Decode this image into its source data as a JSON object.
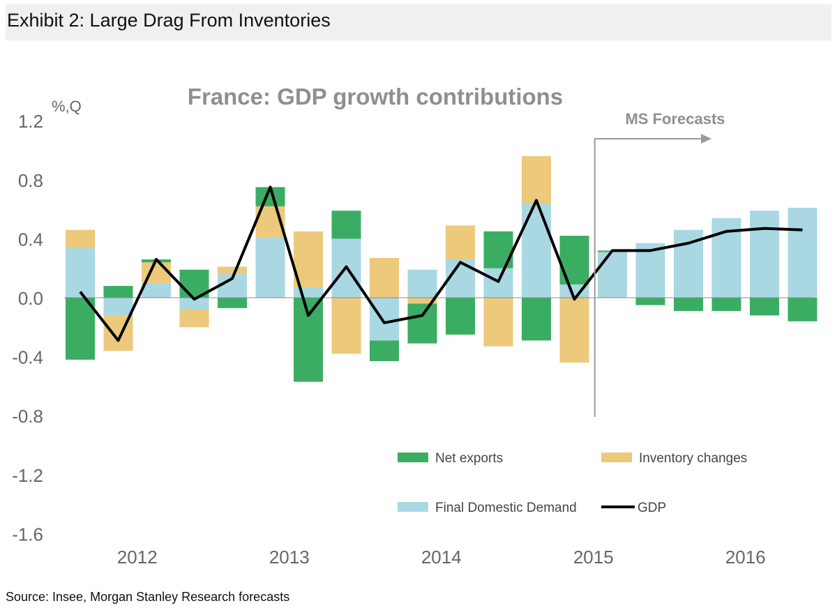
{
  "exhibit": {
    "title": "Exhibit 2:  Large Drag From Inventories",
    "source": "Source: Insee, Morgan Stanley Research forecasts"
  },
  "colors": {
    "net_exports": "#3aad63",
    "inventory": "#ecc97b",
    "domestic": "#a9d8e3",
    "gdp": "#000000",
    "grid_text": "#666666",
    "title_text": "#8f8f8f"
  },
  "chart_data": {
    "type": "bar",
    "title": "France: GDP growth contributions",
    "ylabel": "%,Q",
    "ylim": [
      -1.6,
      1.2
    ],
    "yticks": [
      1.2,
      0.8,
      0.4,
      0.0,
      -0.4,
      -0.8,
      -1.2,
      -1.6
    ],
    "ytick_labels": [
      "1.2",
      "0.8",
      "0.4",
      "0.0",
      "-0.4",
      "-0.8",
      "-1.2",
      "-1.6"
    ],
    "year_labels": [
      "2012",
      "2013",
      "2014",
      "2015",
      "2016"
    ],
    "categories": [
      "2012Q1",
      "2012Q2",
      "2012Q3",
      "2012Q4",
      "2013Q1",
      "2013Q2",
      "2013Q3",
      "2013Q4",
      "2014Q1",
      "2014Q2",
      "2014Q3",
      "2014Q4",
      "2015Q1",
      "2015Q2",
      "2015Q3",
      "2015Q4",
      "2016Q1",
      "2016Q2",
      "2016Q3",
      "2016Q4"
    ],
    "series": [
      {
        "name": "Final Domestic Demand",
        "key": "domestic",
        "values": [
          0.34,
          -0.12,
          0.1,
          -0.08,
          0.16,
          0.41,
          0.07,
          0.4,
          -0.29,
          0.19,
          0.26,
          0.2,
          0.64,
          0.09,
          0.31,
          0.37,
          0.46,
          0.54,
          0.59,
          0.61
        ]
      },
      {
        "name": "Inventory changes",
        "key": "inventory",
        "values": [
          0.12,
          -0.24,
          0.14,
          -0.12,
          0.05,
          0.21,
          0.38,
          -0.38,
          0.27,
          -0.04,
          0.23,
          -0.33,
          0.32,
          -0.44,
          0.0,
          0.0,
          0.0,
          0.0,
          0.0,
          0.0
        ]
      },
      {
        "name": "Net exports",
        "key": "net_exports",
        "values": [
          -0.42,
          0.08,
          0.02,
          0.19,
          -0.07,
          0.13,
          -0.57,
          0.19,
          -0.14,
          -0.27,
          -0.25,
          0.25,
          -0.29,
          0.33,
          0.01,
          -0.05,
          -0.09,
          -0.09,
          -0.12,
          -0.16
        ]
      },
      {
        "name": "GDP",
        "key": "gdp",
        "type": "line",
        "values": [
          0.04,
          -0.29,
          0.26,
          -0.01,
          0.13,
          0.75,
          -0.12,
          0.21,
          -0.17,
          -0.12,
          0.24,
          0.11,
          0.66,
          -0.01,
          0.32,
          0.32,
          0.37,
          0.45,
          0.47,
          0.46
        ]
      }
    ],
    "legend": [
      {
        "label": "Net exports",
        "key": "net_exports",
        "kind": "bar"
      },
      {
        "label": "Inventory changes",
        "key": "inventory",
        "kind": "bar"
      },
      {
        "label": "Final Domestic Demand",
        "key": "domestic",
        "kind": "bar"
      },
      {
        "label": "GDP",
        "key": "gdp",
        "kind": "line"
      }
    ],
    "legend_position": "lower-right",
    "annotation": {
      "text": "MS Forecasts",
      "forecast_start": "2015Q3"
    }
  }
}
